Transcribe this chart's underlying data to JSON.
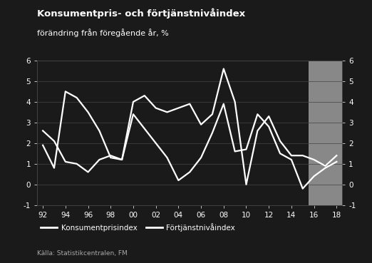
{
  "title": "Konsumentpris- och förtjänstnivåindex",
  "subtitle": "förändring från föregående år, %",
  "source": "Källa: Statistikcentralen, FM",
  "bg_color": "#1a1a1a",
  "plot_bg_color": "#1a1a1a",
  "forecast_bg_color": "#888888",
  "line_color": "#ffffff",
  "text_color": "#ffffff",
  "source_color": "#aaaaaa",
  "grid_color": "#444444",
  "years": [
    1992,
    1993,
    1994,
    1995,
    1996,
    1997,
    1998,
    1999,
    2000,
    2001,
    2002,
    2003,
    2004,
    2005,
    2006,
    2007,
    2008,
    2009,
    2010,
    2011,
    2012,
    2013,
    2014,
    2015,
    2016,
    2017,
    2018
  ],
  "konsumentpris": [
    2.6,
    2.1,
    1.1,
    1.0,
    0.6,
    1.2,
    1.4,
    1.2,
    3.4,
    2.7,
    2.0,
    1.3,
    0.2,
    0.6,
    1.3,
    2.5,
    3.9,
    1.6,
    1.7,
    3.4,
    2.8,
    1.5,
    1.2,
    -0.2,
    0.4,
    0.8,
    1.1
  ],
  "fortjanstniva": [
    1.9,
    0.8,
    4.5,
    4.2,
    3.5,
    2.6,
    1.3,
    1.2,
    4.0,
    4.3,
    3.7,
    3.5,
    3.7,
    3.9,
    2.9,
    3.4,
    5.6,
    4.0,
    0.0,
    2.6,
    3.3,
    2.1,
    1.4,
    1.4,
    1.2,
    0.9,
    1.4
  ],
  "forecast_start": 2015.5,
  "ylim": [
    -1,
    6
  ],
  "yticks": [
    -1,
    0,
    1,
    2,
    3,
    4,
    5,
    6
  ],
  "xtick_positions": [
    1992,
    1994,
    1996,
    1998,
    2000,
    2002,
    2004,
    2006,
    2008,
    2010,
    2012,
    2014,
    2016,
    2018
  ],
  "xtick_labels": [
    "92",
    "94",
    "96",
    "98",
    "00",
    "02",
    "04",
    "06",
    "08",
    "10",
    "12",
    "14",
    "16",
    "18"
  ],
  "legend1": "Konsumentprisindex",
  "legend2": "Förtjänstnivåindex",
  "linewidth": 1.6
}
